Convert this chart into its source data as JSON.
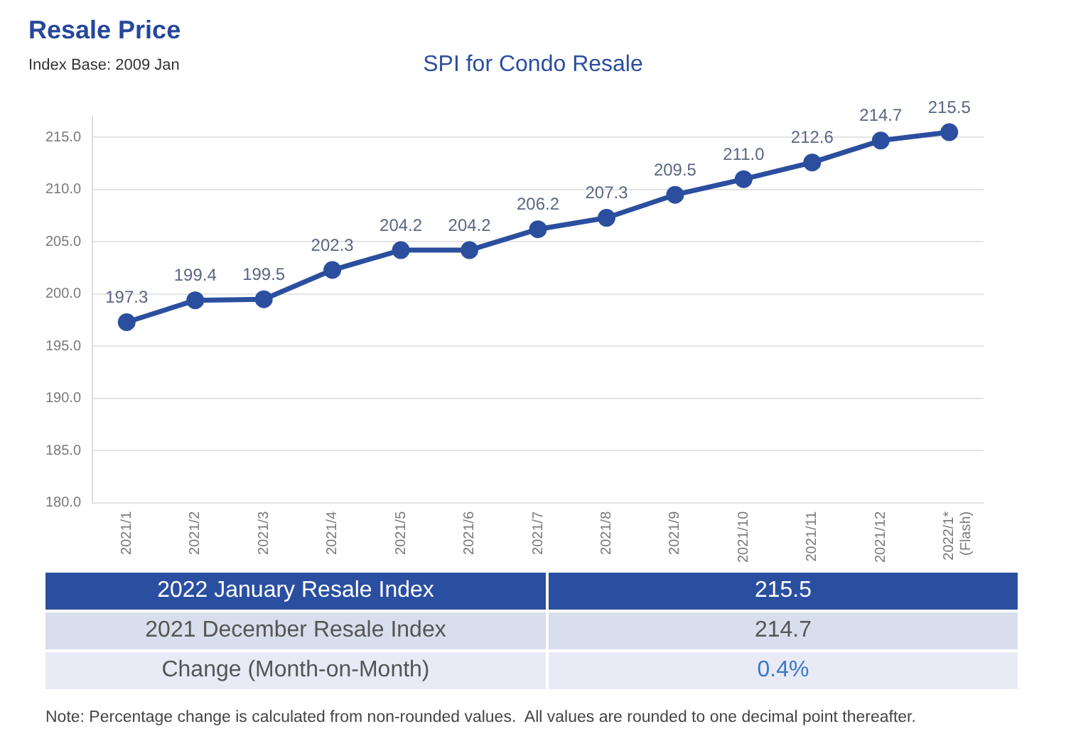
{
  "chart_data": [
    {
      "type": "other",
      "title": "Resale Price",
      "subtitle": "Index Base: 2009 Jan"
    },
    {
      "type": "line",
      "title": "SPI for Condo Resale",
      "categories": [
        "2021/1",
        "2021/2",
        "2021/3",
        "2021/4",
        "2021/5",
        "2021/6",
        "2021/7",
        "2021/8",
        "2021/9",
        "2021/10",
        "2021/11",
        "2021/12",
        "2022/1* (Flash)"
      ],
      "series": [
        {
          "color": "#2b4f9e",
          "values": [
            197.3,
            199.4,
            199.5,
            202.3,
            204.2,
            204.2,
            206.2,
            207.3,
            209.5,
            211.0,
            212.6,
            214.7,
            215.5
          ],
          "value_labels": [
            "197.3",
            "199.4",
            "199.5",
            "202.3",
            "204.2",
            "204.2",
            "206.2",
            "207.3",
            "209.5",
            "211.0",
            "212.6",
            "214.7",
            "215.5"
          ]
        }
      ],
      "ylim": [
        180,
        217
      ],
      "yticks": [
        {
          "value": 180,
          "label": "180.0"
        },
        {
          "value": 185,
          "label": "185.0"
        },
        {
          "value": 190,
          "label": "190.0"
        },
        {
          "value": 195,
          "label": "195.0"
        },
        {
          "value": 200,
          "label": "200.0"
        },
        {
          "value": 205,
          "label": "205.0"
        },
        {
          "value": 210,
          "label": "210.0"
        },
        {
          "value": 215,
          "label": "215.0"
        }
      ],
      "grid": "y",
      "legend": false,
      "marker": "circle",
      "line_style": "solid"
    },
    {
      "type": "other",
      "annotations": [
        "2022 January Resale Index",
        "215.5",
        "2021 December Resale Index",
        "214.7",
        "Change (Month-on-Month)",
        "0.4%",
        "Note: Percentage change is calculated from non-rounded values.  All values are rounded to one decimal point thereafter."
      ]
    }
  ]
}
